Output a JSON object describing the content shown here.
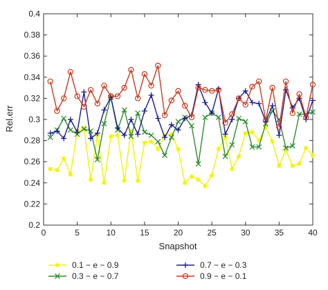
{
  "chart_data": {
    "type": "line",
    "xlabel": "Snapshot",
    "ylabel": "Rel.err",
    "xlim": [
      0,
      40
    ],
    "ylim": [
      0.2,
      0.4
    ],
    "xticks": [
      0,
      5,
      10,
      15,
      20,
      25,
      30,
      35,
      40
    ],
    "yticks": [
      0.2,
      0.22,
      0.24,
      0.26,
      0.28,
      0.3,
      0.32,
      0.34,
      0.36,
      0.38,
      0.4
    ],
    "xtick_labels": [
      "0",
      "5",
      "10",
      "15",
      "20",
      "25",
      "30",
      "35",
      "40"
    ],
    "ytick_labels": [
      "0.2",
      "0.22",
      "0.24",
      "0.26",
      "0.28",
      "0.3",
      "0.32",
      "0.34",
      "0.36",
      "0.38",
      "0.4"
    ],
    "grid": false,
    "legend_position": "bottom",
    "x": [
      1,
      2,
      3,
      4,
      5,
      6,
      7,
      8,
      9,
      10,
      11,
      12,
      13,
      14,
      15,
      16,
      17,
      18,
      19,
      20,
      21,
      22,
      23,
      24,
      25,
      26,
      27,
      28,
      29,
      30,
      31,
      32,
      33,
      34,
      35,
      36,
      37,
      38,
      39,
      40
    ],
    "series": [
      {
        "name": "0.1 − e − 0.9",
        "color": "#f2f200",
        "marker": "star",
        "values": [
          0.253,
          0.252,
          0.263,
          0.248,
          0.289,
          0.292,
          0.243,
          0.285,
          0.24,
          0.284,
          0.285,
          0.242,
          0.289,
          0.242,
          0.278,
          0.279,
          0.272,
          0.285,
          0.286,
          0.272,
          0.24,
          0.246,
          0.243,
          0.237,
          0.247,
          0.272,
          0.283,
          0.253,
          0.265,
          0.287,
          0.288,
          0.28,
          0.293,
          0.279,
          0.256,
          0.271,
          0.256,
          0.258,
          0.273,
          0.266
        ]
      },
      {
        "name": "0.3 − e − 0.7",
        "color": "#2e8b2e",
        "marker": "x",
        "values": [
          0.283,
          0.29,
          0.301,
          0.29,
          0.286,
          0.291,
          0.289,
          0.262,
          0.296,
          0.321,
          0.29,
          0.309,
          0.284,
          0.306,
          0.288,
          0.285,
          0.279,
          0.266,
          0.283,
          0.298,
          0.302,
          0.294,
          0.258,
          0.302,
          0.306,
          0.302,
          0.265,
          0.276,
          0.301,
          0.298,
          0.274,
          0.274,
          0.296,
          0.308,
          0.3,
          0.273,
          0.275,
          0.305,
          0.305,
          0.307
        ]
      },
      {
        "name": "0.7 − e − 0.3",
        "color": "#1a1a8c",
        "marker": "plus",
        "values": [
          0.287,
          0.289,
          0.282,
          0.3,
          0.288,
          0.326,
          0.282,
          0.287,
          0.309,
          0.321,
          0.292,
          0.285,
          0.3,
          0.286,
          0.308,
          0.323,
          0.301,
          0.283,
          0.295,
          0.29,
          0.301,
          0.304,
          0.333,
          0.316,
          0.306,
          0.329,
          0.286,
          0.3,
          0.32,
          0.327,
          0.316,
          0.315,
          0.298,
          0.313,
          0.285,
          0.328,
          0.311,
          0.32,
          0.3,
          0.318
        ]
      },
      {
        "name": "0.9 − e − 0.1",
        "color": "#c83a1e",
        "marker": "circle",
        "values": [
          0.336,
          0.308,
          0.32,
          0.345,
          0.322,
          0.312,
          0.328,
          0.315,
          0.332,
          0.322,
          0.322,
          0.33,
          0.347,
          0.32,
          0.343,
          0.332,
          0.351,
          0.304,
          0.318,
          0.327,
          0.313,
          0.302,
          0.33,
          0.328,
          0.327,
          0.328,
          0.297,
          0.305,
          0.32,
          0.314,
          0.331,
          0.336,
          0.299,
          0.33,
          0.293,
          0.336,
          0.306,
          0.324,
          0.302,
          0.333
        ]
      }
    ]
  }
}
